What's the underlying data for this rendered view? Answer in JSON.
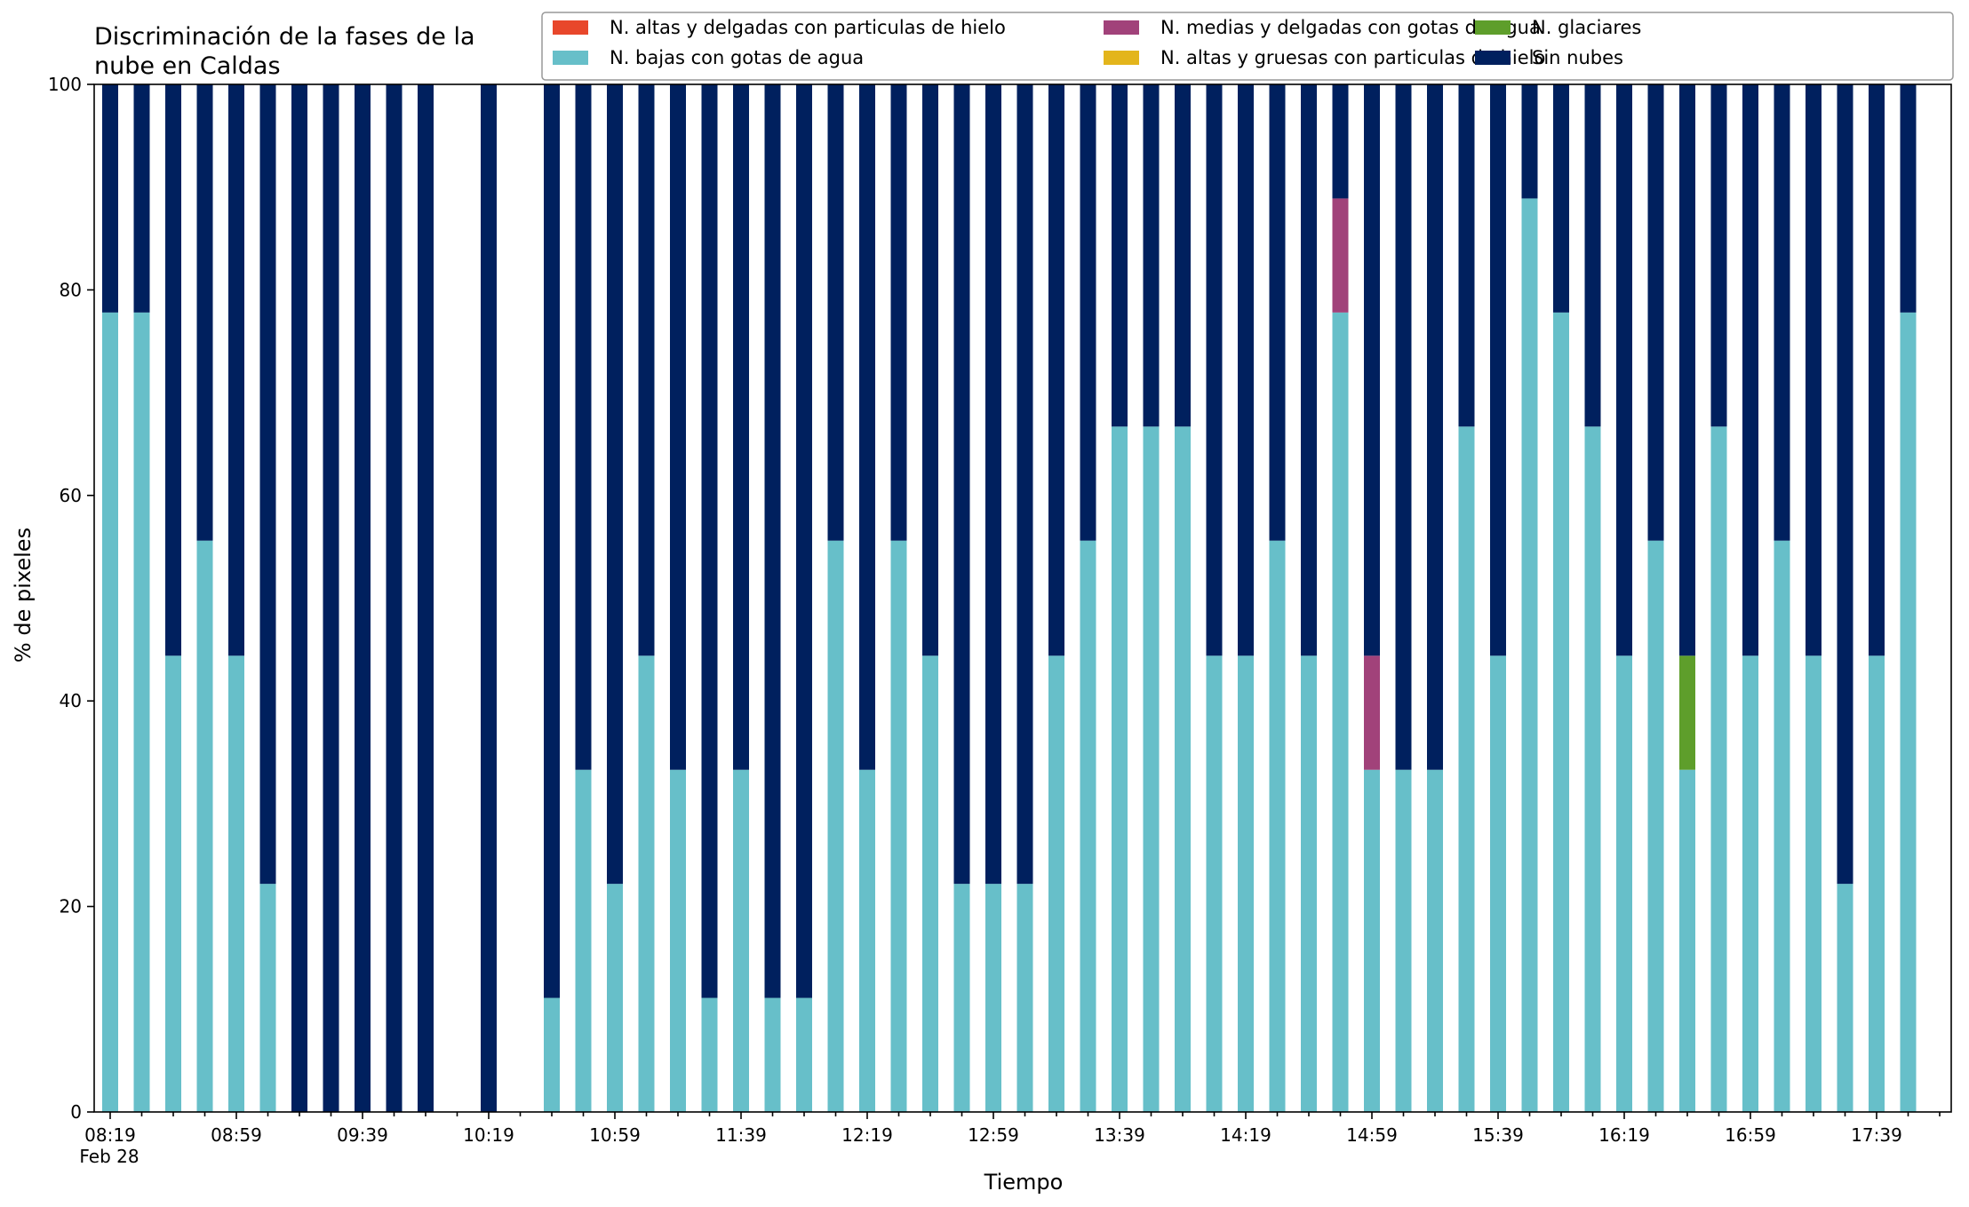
{
  "chart_data": {
    "type": "bar",
    "stacked": true,
    "title_lines": [
      "Discriminación de la fases de la",
      "nube en Caldas"
    ],
    "xlabel": "Tiempo",
    "ylabel": "% de pixeles",
    "ylim": [
      0,
      100
    ],
    "yticks": [
      0,
      20,
      40,
      60,
      80,
      100
    ],
    "x_sub_label": "Feb 28",
    "grid": false,
    "legend_position": "top-right",
    "colors": {
      "altas_delgadas": "#e8472b",
      "altas_gruesas": "#e3b51c",
      "bajas": "#67bfc9",
      "glaciares": "#5e9e2b",
      "medias": "#a1427a",
      "sin_nubes": "#00205e"
    },
    "categories": [
      "08:19",
      "08:29",
      "08:39",
      "08:49",
      "08:59",
      "09:09",
      "09:19",
      "09:29",
      "09:39",
      "09:49",
      "09:59",
      "10:09",
      "10:19",
      "10:29",
      "10:39",
      "10:49",
      "10:59",
      "11:09",
      "11:19",
      "11:29",
      "11:39",
      "11:49",
      "11:59",
      "12:09",
      "12:19",
      "12:29",
      "12:39",
      "12:49",
      "12:59",
      "13:09",
      "13:19",
      "13:29",
      "13:39",
      "13:49",
      "13:59",
      "14:09",
      "14:19",
      "14:29",
      "14:39",
      "14:49",
      "14:59",
      "15:09",
      "15:19",
      "15:29",
      "15:39",
      "15:49",
      "15:59",
      "16:09",
      "16:19",
      "16:29",
      "16:39",
      "16:49",
      "16:59",
      "17:09",
      "17:19",
      "17:29",
      "17:39",
      "17:49"
    ],
    "x_tick_labels": [
      "08:19",
      "08:59",
      "09:39",
      "10:19",
      "10:59",
      "11:39",
      "12:19",
      "12:59",
      "13:39",
      "14:19",
      "14:59",
      "15:39",
      "16:19",
      "16:59",
      "17:39"
    ],
    "series": [
      {
        "key": "altas_delgadas",
        "name": "N. altas y delgadas con particulas de hielo",
        "values": [
          0,
          0,
          0,
          0,
          0,
          0,
          0,
          0,
          0,
          0,
          0,
          null,
          0,
          null,
          0,
          0,
          0,
          0,
          0,
          0,
          0,
          0,
          0,
          0,
          0,
          0,
          0,
          0,
          0,
          0,
          0,
          0,
          0,
          0,
          0,
          0,
          0,
          0,
          0,
          0,
          0,
          0,
          0,
          0,
          0,
          0,
          0,
          0,
          0,
          0,
          0,
          0,
          0,
          0,
          0,
          0,
          0,
          0
        ]
      },
      {
        "key": "altas_gruesas",
        "name": "N. altas y gruesas con particulas de hielo",
        "values": [
          0,
          0,
          0,
          0,
          0,
          0,
          0,
          0,
          0,
          0,
          0,
          null,
          0,
          null,
          0,
          0,
          0,
          0,
          0,
          0,
          0,
          0,
          0,
          0,
          0,
          0,
          0,
          0,
          0,
          0,
          0,
          0,
          0,
          0,
          0,
          0,
          0,
          0,
          0,
          0,
          0,
          0,
          0,
          0,
          0,
          0,
          0,
          0,
          0,
          0,
          0,
          0,
          0,
          0,
          0,
          0,
          0,
          0
        ]
      },
      {
        "key": "bajas",
        "name": "N. bajas con gotas de agua",
        "values": [
          77.8,
          77.8,
          44.4,
          55.6,
          44.4,
          22.2,
          0,
          0,
          0,
          0,
          0,
          null,
          0,
          null,
          11.1,
          33.3,
          22.2,
          44.4,
          33.3,
          11.1,
          33.3,
          11.1,
          11.1,
          55.6,
          33.3,
          55.6,
          44.4,
          22.2,
          22.2,
          22.2,
          44.4,
          55.6,
          66.7,
          66.7,
          66.7,
          44.4,
          44.4,
          55.6,
          44.4,
          77.8,
          33.3,
          33.3,
          33.3,
          66.7,
          44.4,
          88.9,
          77.8,
          66.7,
          44.4,
          55.6,
          33.3,
          66.7,
          44.4,
          55.6,
          44.4,
          22.2,
          44.4,
          77.8
        ]
      },
      {
        "key": "glaciares",
        "name": "N. glaciares",
        "values": [
          0,
          0,
          0,
          0,
          0,
          0,
          0,
          0,
          0,
          0,
          0,
          null,
          0,
          null,
          0,
          0,
          0,
          0,
          0,
          0,
          0,
          0,
          0,
          0,
          0,
          0,
          0,
          0,
          0,
          0,
          0,
          0,
          0,
          0,
          0,
          0,
          0,
          0,
          0,
          0,
          0,
          0,
          0,
          0,
          0,
          0,
          0,
          0,
          0,
          0,
          11.1,
          0,
          0,
          0,
          0,
          0,
          0,
          0
        ]
      },
      {
        "key": "medias",
        "name": "N. medias y delgadas con gotas de agua",
        "values": [
          0,
          0,
          0,
          0,
          0,
          0,
          0,
          0,
          0,
          0,
          0,
          null,
          0,
          null,
          0,
          0,
          0,
          0,
          0,
          0,
          0,
          0,
          0,
          0,
          0,
          0,
          0,
          0,
          0,
          0,
          0,
          0,
          0,
          0,
          0,
          0,
          0,
          0,
          0,
          11.1,
          11.1,
          0,
          0,
          0,
          0,
          0,
          0,
          0,
          0,
          0,
          0,
          0,
          0,
          0,
          0,
          0,
          0,
          0
        ]
      },
      {
        "key": "sin_nubes",
        "name": "Sin nubes",
        "values": [
          22.2,
          22.2,
          55.6,
          44.4,
          55.6,
          77.8,
          100,
          100,
          100,
          100,
          100,
          null,
          100,
          null,
          88.9,
          66.7,
          77.8,
          55.6,
          66.7,
          88.9,
          66.7,
          88.9,
          88.9,
          44.4,
          66.7,
          44.4,
          55.6,
          77.8,
          77.8,
          77.8,
          55.6,
          44.4,
          33.3,
          33.3,
          33.3,
          55.6,
          55.6,
          44.4,
          55.6,
          11.1,
          55.6,
          66.7,
          66.7,
          33.3,
          55.6,
          11.1,
          22.2,
          33.3,
          55.6,
          44.4,
          55.6,
          33.3,
          55.6,
          44.4,
          55.6,
          77.8,
          55.6,
          22.2
        ]
      }
    ],
    "legend_order": [
      "altas_delgadas",
      "bajas",
      "medias",
      "altas_gruesas",
      "glaciares",
      "sin_nubes"
    ]
  }
}
